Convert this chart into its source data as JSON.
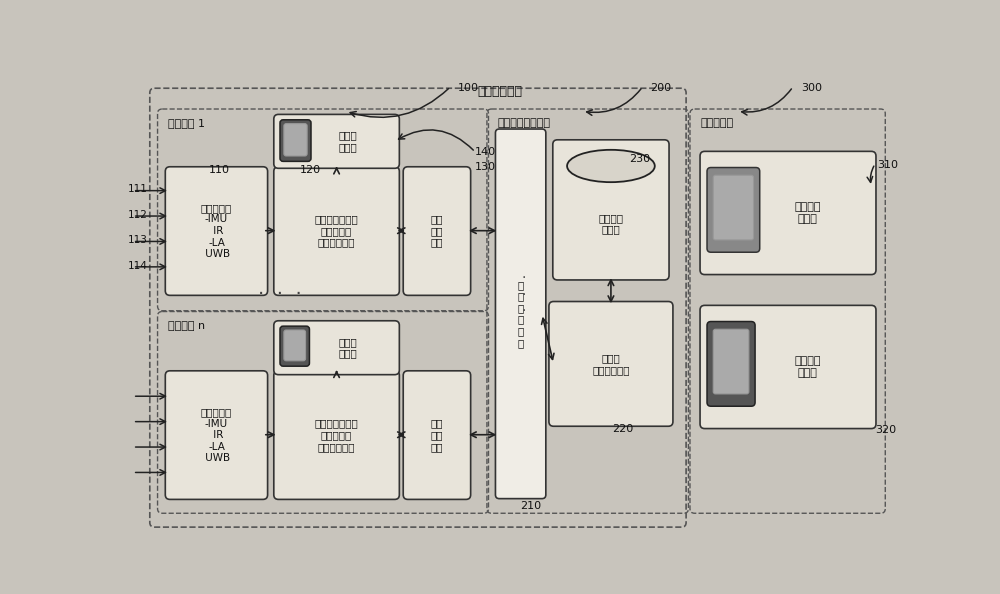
{
  "bg_color": "#c8c4bc",
  "box_face": "#e8e4da",
  "box_face_light": "#f0ede6",
  "edge_dark": "#222222",
  "edge_mid": "#444444",
  "title_wireless": "无线数据链路",
  "terminal1_label": "终端设备 1",
  "terminaln_label": "终端设备 n",
  "sensor1_text": "传感模块：\n-IMU\n IR\n-LA\n UWB",
  "info_proc1_text": "信息处理模块：\n信息预处理\n本地航迹推算",
  "info_trans1_text": "信息\n传输\n模块",
  "local_disp1_text": "本地显\n示模块",
  "sensorn_text": "传感模块：\n-IMU\n IR\n-LA\n UWB",
  "info_procn_text": "信息处理模块：\n信息预处理\n本地航迹推算",
  "info_transn_text": "信息\n传输\n模块",
  "local_dispn_text": "本地显\n示模块",
  "nav_server_label": "导航定位服务器端",
  "info_trans_main_text": "信\n息\n传\n输\n模\n块",
  "high_perf_text": "高性能\n信息处理平台",
  "indoor_map_text": "室内地图\n数据库",
  "command_center_label": "指挥监控端",
  "remote_cmd_text": "远程指挥\n监控端",
  "onsite_cmd_text": "现场指挥\n监控端",
  "label_100": "100",
  "label_110": "110",
  "label_120": "120",
  "label_130": "130",
  "label_140": "140",
  "label_200": "200",
  "label_210": "210",
  "label_220": "220",
  "label_230": "230",
  "label_300": "300",
  "label_310": "310",
  "label_320": "320",
  "label_111": "111",
  "label_112": "112",
  "label_113": "113",
  "label_114": "114"
}
